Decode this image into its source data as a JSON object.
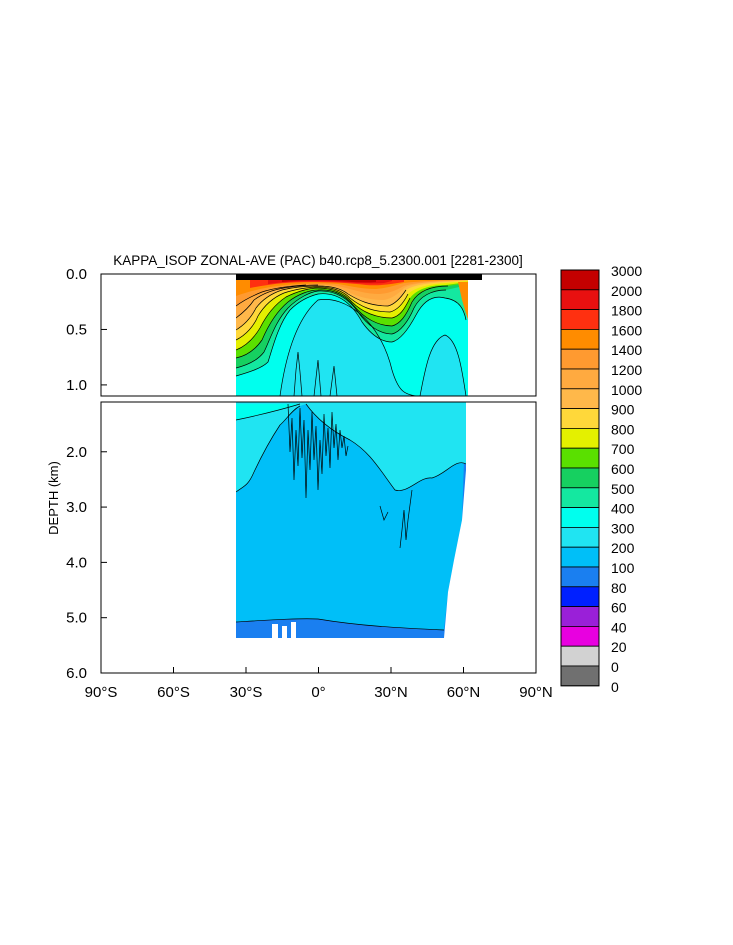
{
  "chart_data": {
    "type": "contour",
    "title": "KAPPA_ISOP ZONAL-AVE (PAC) b40.rcp8_5.2300.001 [2281-2300]",
    "ylabel": "DEPTH (km)",
    "xlabel": "",
    "x_ticks": [
      {
        "value": -90,
        "label": "90°S"
      },
      {
        "value": -60,
        "label": "60°S"
      },
      {
        "value": -30,
        "label": "30°S"
      },
      {
        "value": 0,
        "label": "0°"
      },
      {
        "value": 30,
        "label": "30°N"
      },
      {
        "value": 60,
        "label": "60°N"
      },
      {
        "value": 90,
        "label": "90°N"
      }
    ],
    "upper_panel": {
      "ylim": [
        0.0,
        1.1
      ],
      "y_ticks": [
        {
          "value": 0.0,
          "label": "0.0"
        },
        {
          "value": 0.5,
          "label": "0.5"
        },
        {
          "value": 1.0,
          "label": "1.0"
        }
      ]
    },
    "lower_panel": {
      "ylim": [
        1.1,
        6.0
      ],
      "y_ticks": [
        {
          "value": 2.0,
          "label": "2.0"
        },
        {
          "value": 3.0,
          "label": "3.0"
        },
        {
          "value": 4.0,
          "label": "4.0"
        },
        {
          "value": 5.0,
          "label": "5.0"
        },
        {
          "value": 6.0,
          "label": "6.0"
        }
      ]
    },
    "levels": [
      {
        "label": "3000",
        "color": "#c40000"
      },
      {
        "label": "2000",
        "color": "#e81010"
      },
      {
        "label": "1800",
        "color": "#ff3010"
      },
      {
        "label": "1600",
        "color": "#ff8c00"
      },
      {
        "label": "1400",
        "color": "#ff9a30"
      },
      {
        "label": "1200",
        "color": "#ffaa40"
      },
      {
        "label": "1000",
        "color": "#ffb84a"
      },
      {
        "label": "900",
        "color": "#ffd83a"
      },
      {
        "label": "800",
        "color": "#e4f000"
      },
      {
        "label": "700",
        "color": "#5ae000"
      },
      {
        "label": "600",
        "color": "#16d060"
      },
      {
        "label": "500",
        "color": "#14e8a0"
      },
      {
        "label": "400",
        "color": "#00ffee"
      },
      {
        "label": "300",
        "color": "#20e4f2"
      },
      {
        "label": "200",
        "color": "#00bff8"
      },
      {
        "label": "100",
        "color": "#1a7ff0"
      },
      {
        "label": "80",
        "color": "#0020ff"
      },
      {
        "label": "60",
        "color": "#9a20d8"
      },
      {
        "label": "40",
        "color": "#e800e0"
      },
      {
        "label": "20",
        "color": "#d2d2d2"
      },
      {
        "label": "0",
        "color": "#707070"
      }
    ],
    "colorbar_bottom_label": "0",
    "data_extent": {
      "lat_min": -34,
      "lat_max": 65,
      "max_depth_km": 5.4
    }
  }
}
